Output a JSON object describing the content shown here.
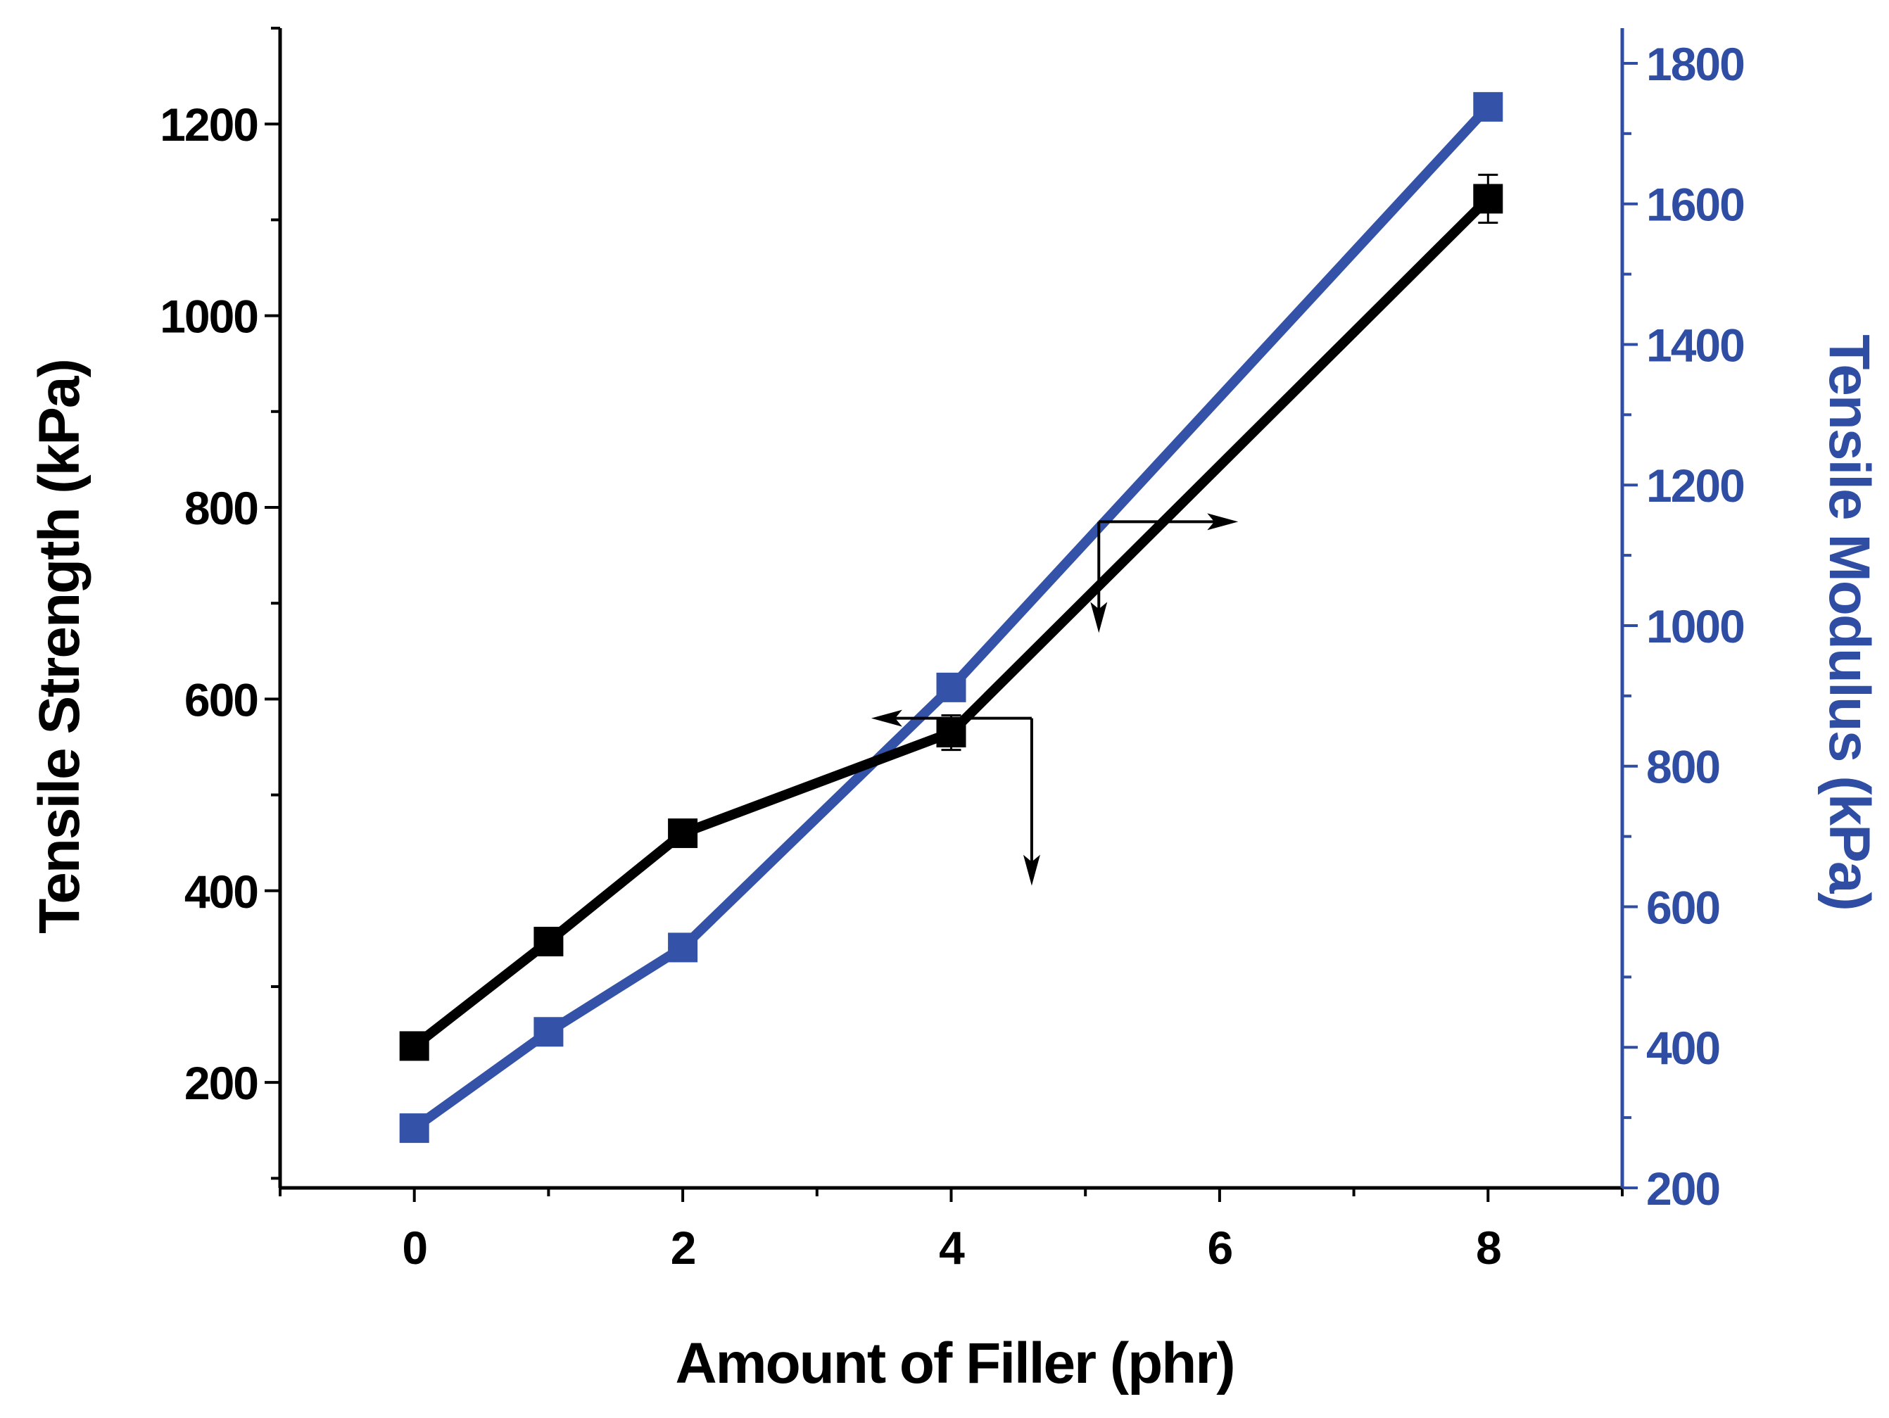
{
  "chart_data": {
    "type": "line",
    "title": "",
    "xlabel": "Amount of Filler (phr)",
    "ylabel": "Tensile Strength (kPa)",
    "y2label": "Tensile Modulus (kPa)",
    "xlim": [
      -1,
      9
    ],
    "ylim": [
      90,
      1300
    ],
    "y2lim": [
      200,
      1850
    ],
    "x_ticks": [
      0,
      2,
      4,
      6,
      8
    ],
    "y_ticks": [
      200,
      400,
      600,
      800,
      1000,
      1200
    ],
    "y2_ticks": [
      200,
      400,
      600,
      800,
      1000,
      1200,
      1400,
      1600,
      1800
    ],
    "grid": false,
    "colors": {
      "strength": "#000000",
      "modulus": "#3352a8",
      "axis": "#000000",
      "axis2": "#2f4ea3"
    },
    "series": [
      {
        "name": "Tensile Strength",
        "axis": "left",
        "x": [
          0,
          1,
          2,
          4,
          8
        ],
        "values": [
          238,
          347,
          460,
          565,
          1122
        ],
        "error": [
          0,
          0,
          0,
          18,
          25
        ]
      },
      {
        "name": "Tensile Modulus",
        "axis": "right",
        "x": [
          0,
          1,
          2,
          4,
          8
        ],
        "values": [
          285,
          422,
          542,
          912,
          1738
        ]
      }
    ],
    "annotations": [
      {
        "name": "strength-arrow",
        "points_to": "left axis",
        "at_x": 4.6,
        "at_y_left": 580
      },
      {
        "name": "modulus-arrow",
        "points_to": "right axis",
        "at_x": 5.1,
        "at_y_left": 785
      }
    ]
  }
}
